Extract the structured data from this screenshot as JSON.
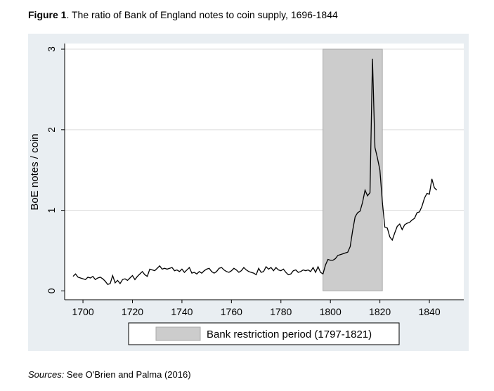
{
  "chart_data": {
    "type": "line",
    "figure_label": "Figure 1",
    "title": ". The ratio of Bank of England notes to coin supply, 1696-1844",
    "y_label": "BoE notes / coin",
    "x": [
      1696,
      1697,
      1698,
      1699,
      1700,
      1701,
      1702,
      1703,
      1704,
      1705,
      1706,
      1707,
      1708,
      1709,
      1710,
      1711,
      1712,
      1713,
      1714,
      1715,
      1716,
      1717,
      1718,
      1719,
      1720,
      1721,
      1722,
      1723,
      1724,
      1725,
      1726,
      1727,
      1728,
      1729,
      1730,
      1731,
      1732,
      1733,
      1734,
      1735,
      1736,
      1737,
      1738,
      1739,
      1740,
      1741,
      1742,
      1743,
      1744,
      1745,
      1746,
      1747,
      1748,
      1749,
      1750,
      1751,
      1752,
      1753,
      1754,
      1755,
      1756,
      1757,
      1758,
      1759,
      1760,
      1761,
      1762,
      1763,
      1764,
      1765,
      1766,
      1767,
      1768,
      1769,
      1770,
      1771,
      1772,
      1773,
      1774,
      1775,
      1776,
      1777,
      1778,
      1779,
      1780,
      1781,
      1782,
      1783,
      1784,
      1785,
      1786,
      1787,
      1788,
      1789,
      1790,
      1791,
      1792,
      1793,
      1794,
      1795,
      1796,
      1797,
      1798,
      1799,
      1800,
      1801,
      1802,
      1803,
      1804,
      1805,
      1806,
      1807,
      1808,
      1809,
      1810,
      1811,
      1812,
      1813,
      1814,
      1815,
      1816,
      1817,
      1818,
      1819,
      1820,
      1821,
      1822,
      1823,
      1824,
      1825,
      1826,
      1827,
      1828,
      1829,
      1830,
      1831,
      1832,
      1833,
      1834,
      1835,
      1836,
      1837,
      1838,
      1839,
      1840,
      1841,
      1842,
      1843
    ],
    "series": [
      {
        "color": "#000000",
        "values": [
          0.18,
          0.21,
          0.17,
          0.16,
          0.15,
          0.14,
          0.17,
          0.16,
          0.18,
          0.14,
          0.16,
          0.17,
          0.15,
          0.12,
          0.08,
          0.09,
          0.19,
          0.1,
          0.13,
          0.09,
          0.14,
          0.15,
          0.13,
          0.16,
          0.19,
          0.14,
          0.18,
          0.21,
          0.24,
          0.2,
          0.18,
          0.27,
          0.26,
          0.25,
          0.28,
          0.31,
          0.27,
          0.28,
          0.27,
          0.28,
          0.29,
          0.25,
          0.26,
          0.24,
          0.27,
          0.23,
          0.26,
          0.29,
          0.22,
          0.23,
          0.21,
          0.24,
          0.22,
          0.25,
          0.27,
          0.28,
          0.24,
          0.22,
          0.24,
          0.28,
          0.29,
          0.26,
          0.24,
          0.23,
          0.25,
          0.28,
          0.26,
          0.23,
          0.25,
          0.29,
          0.26,
          0.24,
          0.23,
          0.22,
          0.2,
          0.28,
          0.23,
          0.24,
          0.3,
          0.27,
          0.29,
          0.25,
          0.29,
          0.26,
          0.25,
          0.27,
          0.23,
          0.2,
          0.21,
          0.25,
          0.26,
          0.23,
          0.24,
          0.26,
          0.25,
          0.26,
          0.24,
          0.29,
          0.23,
          0.3,
          0.23,
          0.21,
          0.32,
          0.39,
          0.38,
          0.38,
          0.4,
          0.44,
          0.45,
          0.46,
          0.47,
          0.48,
          0.55,
          0.75,
          0.92,
          0.97,
          0.99,
          1.1,
          1.25,
          1.18,
          1.22,
          2.88,
          1.78,
          1.65,
          1.5,
          1.1,
          0.79,
          0.78,
          0.67,
          0.63,
          0.72,
          0.8,
          0.83,
          0.76,
          0.82,
          0.84,
          0.85,
          0.88,
          0.9,
          0.97,
          0.98,
          1.05,
          1.15,
          1.21,
          1.2,
          1.39,
          1.28,
          1.25
        ]
      }
    ],
    "shade": {
      "start": 1797,
      "end": 1821,
      "color": "#cccccc",
      "label": "Bank restriction period (1797-1821)"
    },
    "xlim": [
      1692.6,
      1853.9
    ],
    "ylim": [
      -0.11,
      3.07
    ],
    "xticks": [
      1700,
      1720,
      1740,
      1760,
      1780,
      1800,
      1820,
      1840
    ],
    "yticks": [
      0,
      1,
      2,
      3
    ],
    "grid": true,
    "source_label": "Sources:",
    "source": " See O'Brien and Palma (2016)"
  }
}
